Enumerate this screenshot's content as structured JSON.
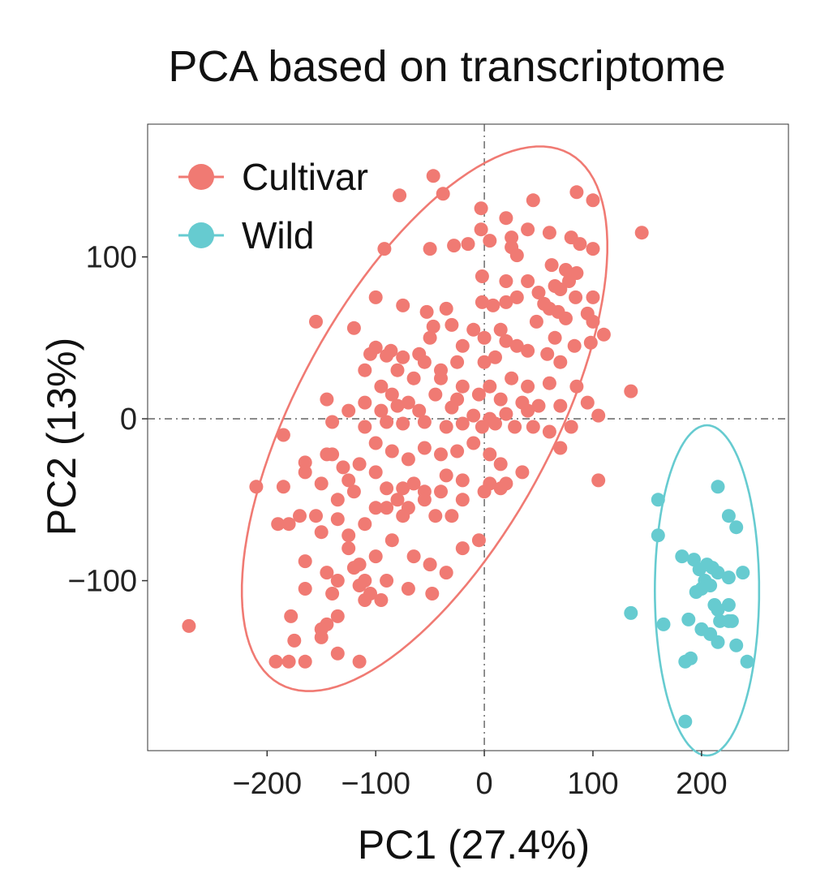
{
  "chart_data": {
    "type": "scatter",
    "title": "PCA based on transcriptome",
    "xlabel": "PC1 (27.4%)",
    "ylabel": "PC2 (13%)",
    "xlim": [
      -310,
      280
    ],
    "ylim": [
      -205,
      182
    ],
    "xticks": [
      -200,
      -100,
      0,
      100,
      200
    ],
    "xtick_labels": [
      "−200",
      "−100",
      "0",
      "100",
      "200"
    ],
    "yticks": [
      -100,
      0,
      100
    ],
    "ytick_labels": [
      "−100",
      "0",
      "100"
    ],
    "grid": false,
    "reference_lines": {
      "x": 0,
      "y": 0,
      "style": "dashdot"
    },
    "legend": {
      "position": "top-left"
    },
    "colors": {
      "Cultivar": "#f07a73",
      "Wild": "#66cbd0"
    },
    "series": [
      {
        "name": "Cultivar",
        "ellipse": {
          "cx": -55,
          "cy": 0,
          "rx": 215,
          "ry": 102,
          "rotation_deg": 45
        },
        "points": [
          [
            -47,
            150
          ],
          [
            -78,
            138
          ],
          [
            -38,
            139
          ],
          [
            -3,
            130
          ],
          [
            -3,
            117
          ],
          [
            20,
            124
          ],
          [
            45,
            135
          ],
          [
            85,
            140
          ],
          [
            100,
            135
          ],
          [
            145,
            115
          ],
          [
            -92,
            105
          ],
          [
            -50,
            105
          ],
          [
            -28,
            107
          ],
          [
            -15,
            108
          ],
          [
            5,
            110
          ],
          [
            25,
            112
          ],
          [
            40,
            117
          ],
          [
            60,
            115
          ],
          [
            80,
            112
          ],
          [
            88,
            108
          ],
          [
            100,
            105
          ],
          [
            25,
            106
          ],
          [
            30,
            101
          ],
          [
            62,
            95
          ],
          [
            75,
            92
          ],
          [
            85,
            90
          ],
          [
            -2,
            88
          ],
          [
            20,
            85
          ],
          [
            40,
            85
          ],
          [
            65,
            82
          ],
          [
            50,
            78
          ],
          [
            70,
            80
          ],
          [
            78,
            85
          ],
          [
            -100,
            75
          ],
          [
            -75,
            70
          ],
          [
            -53,
            66
          ],
          [
            -35,
            68
          ],
          [
            -2,
            72
          ],
          [
            8,
            70
          ],
          [
            20,
            72
          ],
          [
            30,
            75
          ],
          [
            55,
            71
          ],
          [
            84,
            75
          ],
          [
            100,
            75
          ],
          [
            60,
            68
          ],
          [
            75,
            62
          ],
          [
            95,
            65
          ],
          [
            -155,
            60
          ],
          [
            -47,
            57
          ],
          [
            -30,
            58
          ],
          [
            -10,
            55
          ],
          [
            15,
            55
          ],
          [
            48,
            60
          ],
          [
            68,
            66
          ],
          [
            100,
            60
          ],
          [
            110,
            52
          ],
          [
            -120,
            56
          ],
          [
            -100,
            44
          ],
          [
            -86,
            42
          ],
          [
            -60,
            40
          ],
          [
            -50,
            50
          ],
          [
            -20,
            45
          ],
          [
            0,
            50
          ],
          [
            20,
            48
          ],
          [
            30,
            45
          ],
          [
            65,
            50
          ],
          [
            83,
            45
          ],
          [
            98,
            47
          ],
          [
            -105,
            40
          ],
          [
            -90,
            39
          ],
          [
            -75,
            38
          ],
          [
            -55,
            35
          ],
          [
            -40,
            30
          ],
          [
            -25,
            35
          ],
          [
            0,
            35
          ],
          [
            10,
            38
          ],
          [
            40,
            42
          ],
          [
            58,
            40
          ],
          [
            70,
            35
          ],
          [
            -110,
            30
          ],
          [
            -80,
            30
          ],
          [
            -65,
            25
          ],
          [
            -40,
            25
          ],
          [
            -20,
            20
          ],
          [
            5,
            20
          ],
          [
            25,
            25
          ],
          [
            40,
            20
          ],
          [
            60,
            22
          ],
          [
            85,
            20
          ],
          [
            -95,
            20
          ],
          [
            -85,
            15
          ],
          [
            -70,
            10
          ],
          [
            -45,
            15
          ],
          [
            -25,
            12
          ],
          [
            -5,
            15
          ],
          [
            15,
            12
          ],
          [
            35,
            10
          ],
          [
            50,
            8
          ],
          [
            70,
            8
          ],
          [
            95,
            10
          ],
          [
            -110,
            10
          ],
          [
            -95,
            5
          ],
          [
            -80,
            8
          ],
          [
            -60,
            5
          ],
          [
            -30,
            7
          ],
          [
            -10,
            2
          ],
          [
            5,
            0
          ],
          [
            20,
            3
          ],
          [
            40,
            5
          ],
          [
            -145,
            12
          ],
          [
            -125,
            5
          ],
          [
            -110,
            -5
          ],
          [
            -90,
            -2
          ],
          [
            -75,
            -3
          ],
          [
            -55,
            -2
          ],
          [
            -35,
            -5
          ],
          [
            -20,
            -3
          ],
          [
            -2,
            -5
          ],
          [
            10,
            -3
          ],
          [
            28,
            -5
          ],
          [
            45,
            -5
          ],
          [
            60,
            -8
          ],
          [
            80,
            -5
          ],
          [
            -140,
            -2
          ],
          [
            135,
            17
          ],
          [
            105,
            2
          ],
          [
            -185,
            -10
          ],
          [
            -145,
            -22
          ],
          [
            -100,
            -15
          ],
          [
            -85,
            -20
          ],
          [
            -70,
            -25
          ],
          [
            -55,
            -18
          ],
          [
            -40,
            -22
          ],
          [
            -25,
            -20
          ],
          [
            -10,
            -15
          ],
          [
            5,
            -22
          ],
          [
            15,
            -28
          ],
          [
            35,
            -33
          ],
          [
            70,
            -18
          ],
          [
            -210,
            -42
          ],
          [
            -185,
            -42
          ],
          [
            -165,
            -27
          ],
          [
            -140,
            -22
          ],
          [
            -130,
            -30
          ],
          [
            -125,
            -38
          ],
          [
            -115,
            -28
          ],
          [
            -100,
            -33
          ],
          [
            -90,
            -43
          ],
          [
            -75,
            -43
          ],
          [
            -70,
            -55
          ],
          [
            -55,
            -45
          ],
          [
            -35,
            -35
          ],
          [
            -20,
            -50
          ],
          [
            5,
            -40
          ],
          [
            15,
            -43
          ],
          [
            -165,
            -33
          ],
          [
            -150,
            -40
          ],
          [
            -135,
            -50
          ],
          [
            -120,
            -45
          ],
          [
            -100,
            -55
          ],
          [
            -80,
            -50
          ],
          [
            -65,
            -40
          ],
          [
            -40,
            -45
          ],
          [
            -20,
            -38
          ],
          [
            0,
            -45
          ],
          [
            20,
            -40
          ],
          [
            105,
            -38
          ],
          [
            -190,
            -65
          ],
          [
            -170,
            -60
          ],
          [
            -155,
            -60
          ],
          [
            -135,
            -62
          ],
          [
            -125,
            -72
          ],
          [
            -110,
            -65
          ],
          [
            -90,
            -55
          ],
          [
            -75,
            -60
          ],
          [
            -55,
            -50
          ],
          [
            -30,
            -60
          ],
          [
            -45,
            -60
          ],
          [
            -180,
            -65
          ],
          [
            -150,
            -70
          ],
          [
            -125,
            -80
          ],
          [
            -115,
            -90
          ],
          [
            -100,
            -85
          ],
          [
            -85,
            -75
          ],
          [
            -65,
            -85
          ],
          [
            -50,
            -90
          ],
          [
            -35,
            -95
          ],
          [
            -20,
            -80
          ],
          [
            -5,
            -75
          ],
          [
            -165,
            -88
          ],
          [
            -145,
            -95
          ],
          [
            -135,
            -100
          ],
          [
            -120,
            -92
          ],
          [
            -110,
            -100
          ],
          [
            -90,
            -100
          ],
          [
            -70,
            -105
          ],
          [
            -48,
            -108
          ],
          [
            -165,
            -105
          ],
          [
            -140,
            -108
          ],
          [
            -115,
            -103
          ],
          [
            -105,
            -108
          ],
          [
            -95,
            -112
          ],
          [
            -110,
            -112
          ],
          [
            -178,
            -122
          ],
          [
            -145,
            -127
          ],
          [
            -135,
            -122
          ],
          [
            -150,
            -135
          ],
          [
            -175,
            -137
          ],
          [
            -192,
            -150
          ],
          [
            -180,
            -150
          ],
          [
            -165,
            -150
          ],
          [
            -135,
            -145
          ],
          [
            -115,
            -150
          ],
          [
            -272,
            -128
          ],
          [
            -150,
            -130
          ]
        ]
      },
      {
        "name": "Wild",
        "ellipse": {
          "cx": 205,
          "cy": -106,
          "rx": 48,
          "ry": 102,
          "rotation_deg": 0
        },
        "points": [
          [
            215,
            -42
          ],
          [
            160,
            -50
          ],
          [
            225,
            -60
          ],
          [
            232,
            -67
          ],
          [
            160,
            -72
          ],
          [
            182,
            -85
          ],
          [
            193,
            -87
          ],
          [
            205,
            -90
          ],
          [
            210,
            -92
          ],
          [
            198,
            -93
          ],
          [
            215,
            -95
          ],
          [
            225,
            -98
          ],
          [
            238,
            -95
          ],
          [
            203,
            -100
          ],
          [
            208,
            -103
          ],
          [
            200,
            -105
          ],
          [
            195,
            -107
          ],
          [
            215,
            -118
          ],
          [
            212,
            -115
          ],
          [
            225,
            -115
          ],
          [
            225,
            -125
          ],
          [
            188,
            -124
          ],
          [
            228,
            -125
          ],
          [
            217,
            -125
          ],
          [
            200,
            -130
          ],
          [
            208,
            -133
          ],
          [
            215,
            -138
          ],
          [
            232,
            -140
          ],
          [
            135,
            -120
          ],
          [
            165,
            -127
          ],
          [
            190,
            -148
          ],
          [
            185,
            -150
          ],
          [
            242,
            -150
          ],
          [
            185,
            -187
          ]
        ]
      }
    ]
  }
}
